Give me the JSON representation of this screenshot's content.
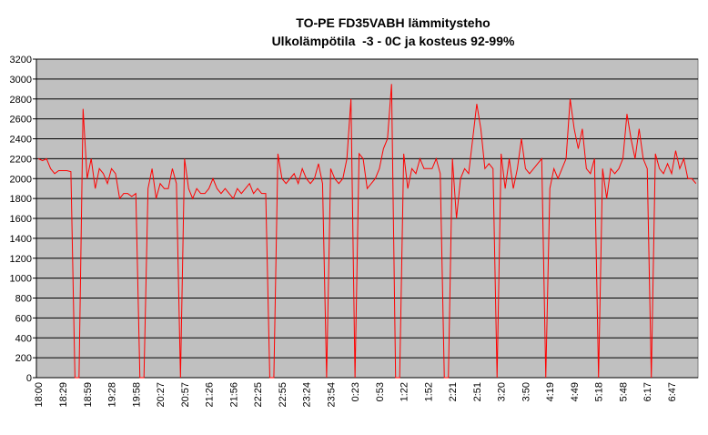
{
  "chart_data": {
    "type": "line",
    "title": "TO-PE FD35VABH lämmitysteho",
    "subtitle": "Ulkolämpötila  -3 - 0C ja kosteus 92-99%",
    "categories": [
      "18:00",
      null,
      null,
      null,
      null,
      null,
      "18:29",
      null,
      null,
      null,
      null,
      null,
      "18:59",
      null,
      null,
      null,
      null,
      null,
      "19:28",
      null,
      null,
      null,
      null,
      null,
      "19:58",
      null,
      null,
      null,
      null,
      null,
      "20:27",
      null,
      null,
      null,
      null,
      null,
      "20:57",
      null,
      null,
      null,
      null,
      null,
      "21:26",
      null,
      null,
      null,
      null,
      null,
      "21:56",
      null,
      null,
      null,
      null,
      null,
      "22:25",
      null,
      null,
      null,
      null,
      null,
      "22:55",
      null,
      null,
      null,
      null,
      null,
      "23:24",
      null,
      null,
      null,
      null,
      null,
      "23:54",
      null,
      null,
      null,
      null,
      null,
      "0:23",
      null,
      null,
      null,
      null,
      null,
      "0:53",
      null,
      null,
      null,
      null,
      null,
      "1:22",
      null,
      null,
      null,
      null,
      null,
      "1:52",
      null,
      null,
      null,
      null,
      null,
      "2:21",
      null,
      null,
      null,
      null,
      null,
      "2:51",
      null,
      null,
      null,
      null,
      null,
      "3:20",
      null,
      null,
      null,
      null,
      null,
      "3:50",
      null,
      null,
      null,
      null,
      null,
      "4:19",
      null,
      null,
      null,
      null,
      null,
      "4:49",
      null,
      null,
      null,
      null,
      null,
      "5:18",
      null,
      null,
      null,
      null,
      null,
      "5:48",
      null,
      null,
      null,
      null,
      null,
      "6:17",
      null,
      null,
      null,
      null,
      null,
      "6:47",
      null,
      null,
      null,
      null,
      null,
      null
    ],
    "values": [
      2200,
      2180,
      2200,
      2100,
      2050,
      2080,
      2080,
      2080,
      2070,
      0,
      0,
      2700,
      2000,
      2200,
      1900,
      2100,
      2050,
      1950,
      2100,
      2050,
      1800,
      1850,
      1850,
      1820,
      1850,
      0,
      0,
      1900,
      2100,
      1800,
      1950,
      1900,
      1900,
      2100,
      1950,
      0,
      2200,
      1900,
      1800,
      1900,
      1850,
      1850,
      1900,
      2000,
      1900,
      1850,
      1900,
      1850,
      1800,
      1900,
      1850,
      1900,
      1950,
      1850,
      1900,
      1850,
      1850,
      0,
      0,
      2250,
      2000,
      1950,
      2000,
      2050,
      1950,
      2100,
      2000,
      1950,
      2000,
      2150,
      1950,
      0,
      2100,
      2000,
      1950,
      2000,
      2200,
      2800,
      0,
      2250,
      2200,
      1900,
      1950,
      2000,
      2100,
      2300,
      2400,
      2950,
      0,
      0,
      2250,
      1900,
      2100,
      2050,
      2200,
      2100,
      2100,
      2100,
      2200,
      2050,
      0,
      0,
      2200,
      1600,
      2000,
      2100,
      2050,
      2400,
      2750,
      2500,
      2100,
      2150,
      2100,
      0,
      2250,
      1900,
      2200,
      1900,
      2100,
      2400,
      2100,
      2050,
      2100,
      2150,
      2200,
      0,
      1900,
      2100,
      2000,
      2100,
      2200,
      2800,
      2500,
      2300,
      2500,
      2100,
      2050,
      2200,
      0,
      2100,
      1800,
      2100,
      2050,
      2100,
      2200,
      2650,
      2400,
      2200,
      2500,
      2200,
      2100,
      0,
      2250,
      2100,
      2050,
      2150,
      2050,
      2280,
      2100,
      2200,
      2000,
      2000,
      1950
    ],
    "color": "#ff0000",
    "ylim": [
      0,
      3200
    ],
    "yticks": [
      0,
      200,
      400,
      600,
      800,
      1000,
      1200,
      1400,
      1600,
      1800,
      2000,
      2200,
      2400,
      2600,
      2800,
      3000,
      3200
    ],
    "grid": true
  }
}
